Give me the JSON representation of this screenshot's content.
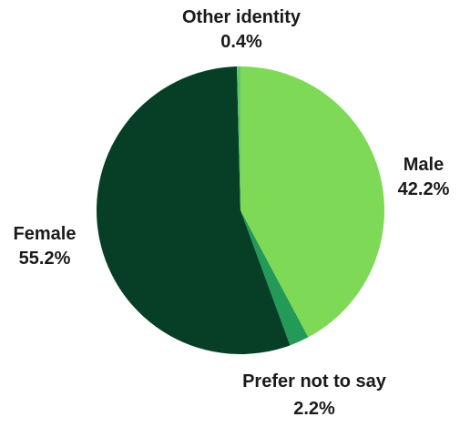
{
  "chart_data": {
    "type": "pie",
    "title": "",
    "slices": [
      {
        "label": "Male",
        "value": 42.2,
        "value_label": "42.2%",
        "color": "#7ed957"
      },
      {
        "label": "Prefer not to say",
        "value": 2.2,
        "value_label": "2.2%",
        "color": "#239a57"
      },
      {
        "label": "Female",
        "value": 55.2,
        "value_label": "55.2%",
        "color": "#063f25"
      },
      {
        "label": "Other identity",
        "value": 0.4,
        "value_label": "0.4%",
        "color": "#5cc86a"
      }
    ],
    "start": "12 o'clock",
    "direction": "clockwise",
    "legend": "none"
  }
}
